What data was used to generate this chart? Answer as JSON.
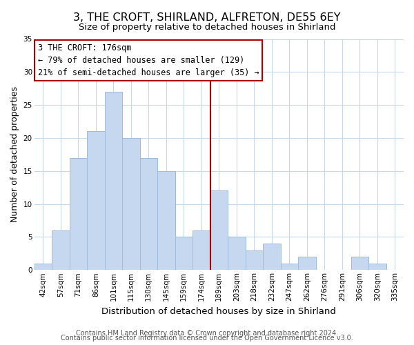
{
  "title": "3, THE CROFT, SHIRLAND, ALFRETON, DE55 6EY",
  "subtitle": "Size of property relative to detached houses in Shirland",
  "xlabel": "Distribution of detached houses by size in Shirland",
  "ylabel": "Number of detached properties",
  "bar_labels": [
    "42sqm",
    "57sqm",
    "71sqm",
    "86sqm",
    "101sqm",
    "115sqm",
    "130sqm",
    "145sqm",
    "159sqm",
    "174sqm",
    "189sqm",
    "203sqm",
    "218sqm",
    "232sqm",
    "247sqm",
    "262sqm",
    "276sqm",
    "291sqm",
    "306sqm",
    "320sqm",
    "335sqm"
  ],
  "bar_values": [
    1,
    6,
    17,
    21,
    27,
    20,
    17,
    15,
    5,
    6,
    12,
    5,
    3,
    4,
    1,
    2,
    0,
    0,
    2,
    1,
    0
  ],
  "bar_color": "#c5d8f0",
  "bar_edge_color": "#a0bcdc",
  "vline_x": 9.5,
  "vline_color": "#aa0000",
  "annotation_title": "3 THE CROFT: 176sqm",
  "annotation_line1": "← 79% of detached houses are smaller (129)",
  "annotation_line2": "21% of semi-detached houses are larger (35) →",
  "annotation_box_color": "#ffffff",
  "annotation_box_edge": "#aa0000",
  "ylim": [
    0,
    35
  ],
  "yticks": [
    0,
    5,
    10,
    15,
    20,
    25,
    30,
    35
  ],
  "footer1": "Contains HM Land Registry data © Crown copyright and database right 2024.",
  "footer2": "Contains public sector information licensed under the Open Government Licence v3.0.",
  "title_fontsize": 11.5,
  "subtitle_fontsize": 9.5,
  "xlabel_fontsize": 9.5,
  "ylabel_fontsize": 9,
  "tick_fontsize": 7.5,
  "annotation_title_fontsize": 9,
  "annotation_text_fontsize": 8.5,
  "footer_fontsize": 7,
  "background_color": "#ffffff",
  "grid_color": "#c8d8e8"
}
